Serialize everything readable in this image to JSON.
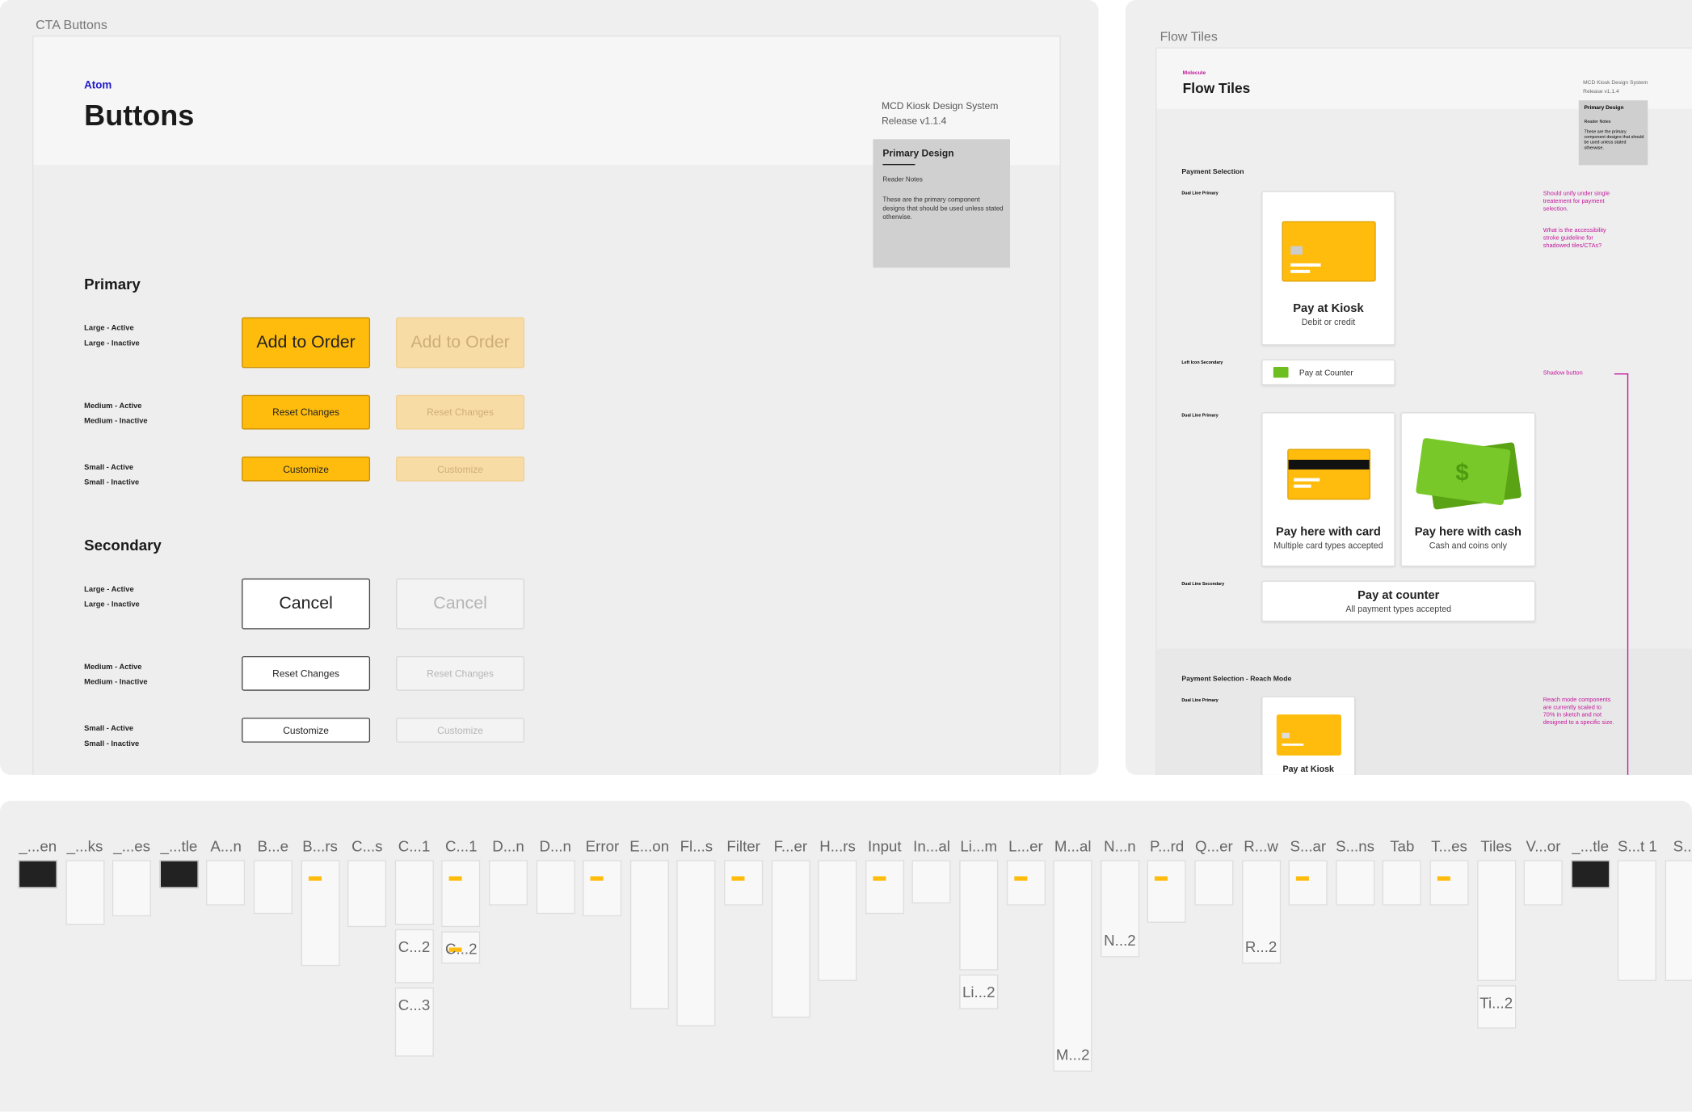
{
  "cta_panel": {
    "label": "CTA Buttons",
    "kind": "Atom",
    "title": "Buttons",
    "system": "MCD Kiosk Design System",
    "release": "Release v1.1.4",
    "note": {
      "title": "Primary Design",
      "subtitle": "Reader Notes",
      "body": "These are the primary component designs that should be used unless stated otherwise."
    },
    "sections": [
      {
        "title": "Primary",
        "rows": [
          {
            "labels": [
              "Large - Active",
              "Large - Inactive"
            ],
            "button": "Add to Order"
          },
          {
            "labels": [
              "Medium - Active",
              "Medium - Inactive"
            ],
            "button": "Reset Changes"
          },
          {
            "labels": [
              "Small - Active",
              "Small - Inactive"
            ],
            "button": "Customize"
          }
        ]
      },
      {
        "title": "Secondary",
        "rows": [
          {
            "labels": [
              "Large - Active",
              "Large - Inactive"
            ],
            "button": "Cancel"
          },
          {
            "labels": [
              "Medium - Active",
              "Medium - Inactive"
            ],
            "button": "Reset Changes"
          },
          {
            "labels": [
              "Small - Active",
              "Small - Inactive"
            ],
            "button": "Customize"
          }
        ]
      }
    ]
  },
  "flow_panel": {
    "label": "Flow Tiles",
    "kind": "Molecule",
    "title": "Flow Tiles",
    "system": "MCD Kiosk Design System",
    "release": "Release v1.1.4",
    "note": {
      "title": "Primary Design",
      "subtitle": "Reader Notes",
      "body": "These are the primary component designs that should be used unless stated otherwise."
    },
    "section": "Payment Selection",
    "labels": [
      "Dual Line Primary",
      "Left Icon Secondary",
      "Dual Line Primary",
      "Dual Line Secondary"
    ],
    "kiosk_tile": {
      "title": "Pay at Kiosk",
      "subtitle": "Debit or credit"
    },
    "counter_button": "Pay at Counter",
    "card_tile": {
      "title": "Pay here with card",
      "subtitle": "Multiple card types accepted"
    },
    "cash_tile": {
      "title": "Pay here with cash",
      "subtitle": "Cash and coins only"
    },
    "counter_tile": {
      "title": "Pay at counter",
      "subtitle": "All payment types accepted"
    },
    "reach_section": "Payment Selection - Reach Mode",
    "reach_label": "Dual Line Primary",
    "reach_tile": "Pay at Kiosk",
    "comments": [
      "Should unify under single treatement for payment selection.",
      "What is the accessibility stroke guideline for shadowed tiles/CTAs?",
      "Shadow button",
      "Reach mode components are currently scaled to 70% in sketch and not designed to a specific size."
    ]
  },
  "artboards": [
    {
      "label": "_...en"
    },
    {
      "label": "_...ks"
    },
    {
      "label": "_...es"
    },
    {
      "label": "_...tle"
    },
    {
      "label": "A...n"
    },
    {
      "label": "B...e"
    },
    {
      "label": "B...rs"
    },
    {
      "label": "C...s"
    },
    {
      "label": "C...1",
      "stack": [
        "C...2",
        "C...3"
      ]
    },
    {
      "label": "C...1",
      "stack": [
        "C...2"
      ]
    },
    {
      "label": "D...n"
    },
    {
      "label": "D...n"
    },
    {
      "label": "Error"
    },
    {
      "label": "E...on"
    },
    {
      "label": "Fl...s"
    },
    {
      "label": "Filter"
    },
    {
      "label": "F...er"
    },
    {
      "label": "H...rs"
    },
    {
      "label": "Input"
    },
    {
      "label": "In...al"
    },
    {
      "label": "Li...m",
      "stack": [
        "Li...2"
      ]
    },
    {
      "label": "L...er"
    },
    {
      "label": "M...al",
      "stack": [
        "M...2"
      ]
    },
    {
      "label": "N...n",
      "stack": [
        "N...2"
      ]
    },
    {
      "label": "P...rd"
    },
    {
      "label": "Q...er"
    },
    {
      "label": "R...w",
      "stack": [
        "R...2"
      ]
    },
    {
      "label": "S...ar"
    },
    {
      "label": "S...ns"
    },
    {
      "label": "Tab"
    },
    {
      "label": "T...es"
    },
    {
      "label": "Tiles",
      "stack": [
        "Ti...2"
      ]
    },
    {
      "label": "V...or"
    },
    {
      "label": "_...tle"
    },
    {
      "label": "S...t 1"
    },
    {
      "label": "S..."
    }
  ]
}
